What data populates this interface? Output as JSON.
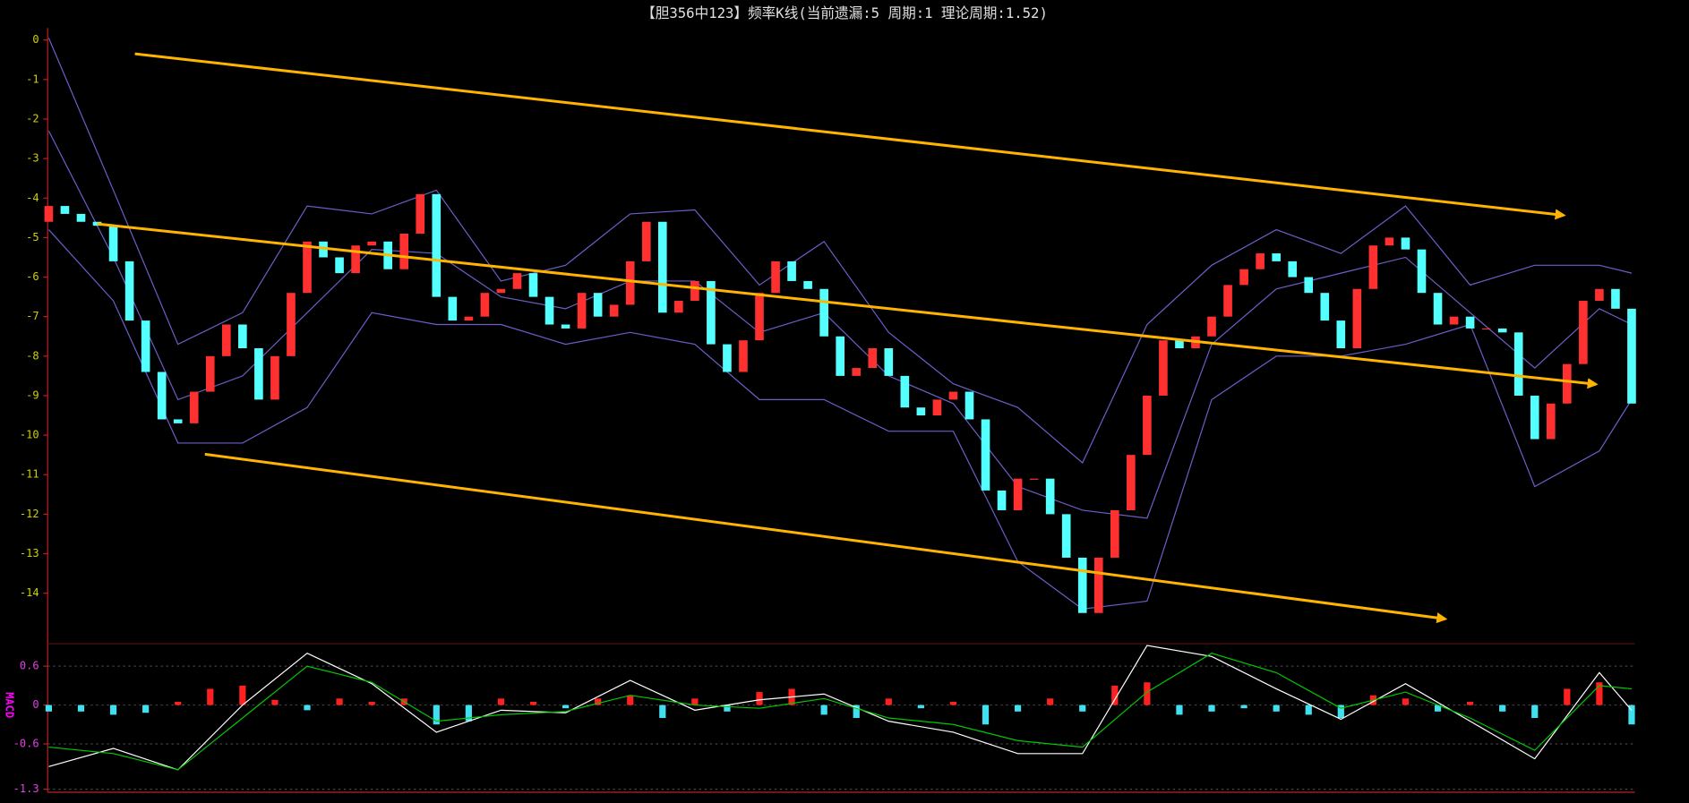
{
  "chart_data": [
    {
      "type": "candlestick",
      "title": "【胆356中123】频率K线(当前遗漏:5 周期:1 理论周期:1.52)",
      "open": [
        -4.6,
        -4.2,
        -4.4,
        -4.6,
        -4.7,
        -5.6,
        -7.1,
        -8.4,
        -9.6,
        -9.7,
        -8.9,
        -8.0,
        -7.2,
        -7.8,
        -9.1,
        -8.0,
        -6.4,
        -5.1,
        -5.5,
        -5.9,
        -5.2,
        -5.1,
        -5.8,
        -4.9,
        -3.9,
        -6.5,
        -7.1,
        -7.0,
        -6.4,
        -6.3,
        -5.9,
        -6.5,
        -7.2,
        -7.3,
        -6.4,
        -7.0,
        -6.7,
        -5.6,
        -4.6,
        -6.9,
        -6.6,
        -6.1,
        -7.7,
        -8.4,
        -7.6,
        -6.4,
        -5.6,
        -6.1,
        -6.3,
        -7.5,
        -8.5,
        -8.3,
        -7.8,
        -8.5,
        -9.3,
        -9.5,
        -9.1,
        -8.9,
        -9.6,
        -11.4,
        -11.9,
        -11.1,
        -11.1,
        -12.0,
        -13.1,
        -14.5,
        -13.1,
        -11.9,
        -10.5,
        -9.0,
        -7.6,
        -7.8,
        -7.5,
        -7.0,
        -6.2,
        -5.8,
        -5.4,
        -5.6,
        -6.0,
        -6.4,
        -7.1,
        -7.8,
        -6.3,
        -5.2,
        -5.0,
        -5.3,
        -6.4,
        -7.2,
        -7.0,
        -7.3,
        -7.3,
        -7.4,
        -9.0,
        -10.1,
        -9.2,
        -8.2,
        -6.6,
        -6.3,
        -6.8
      ],
      "close": [
        -4.2,
        -4.4,
        -4.6,
        -4.7,
        -5.6,
        -7.1,
        -8.4,
        -9.6,
        -9.7,
        -8.9,
        -8.0,
        -7.2,
        -7.8,
        -9.1,
        -8.0,
        -6.4,
        -5.1,
        -5.5,
        -5.9,
        -5.2,
        -5.1,
        -5.8,
        -4.9,
        -3.9,
        -6.5,
        -7.1,
        -7.0,
        -6.4,
        -6.3,
        -5.9,
        -6.5,
        -7.2,
        -7.3,
        -6.4,
        -7.0,
        -6.7,
        -5.6,
        -4.6,
        -6.9,
        -6.6,
        -6.1,
        -7.7,
        -8.4,
        -7.6,
        -6.4,
        -5.6,
        -6.1,
        -6.3,
        -7.5,
        -8.5,
        -8.3,
        -7.8,
        -8.5,
        -9.3,
        -9.5,
        -9.1,
        -8.9,
        -9.6,
        -11.4,
        -11.9,
        -11.1,
        -11.1,
        -12.0,
        -13.1,
        -14.5,
        -13.1,
        -11.9,
        -10.5,
        -9.0,
        -7.6,
        -7.8,
        -7.5,
        -7.0,
        -6.2,
        -5.8,
        -5.4,
        -5.6,
        -6.0,
        -6.4,
        -7.1,
        -7.8,
        -6.3,
        -5.2,
        -5.0,
        -5.3,
        -6.4,
        -7.2,
        -7.0,
        -7.3,
        -7.3,
        -7.4,
        -9.0,
        -10.1,
        -9.2,
        -8.2,
        -6.6,
        -6.3,
        -6.8,
        -9.2
      ],
      "up_color": "#ff3030",
      "down_color": "#54ffff",
      "ylim": [
        -15.25,
        0.25
      ],
      "yticks": [
        0,
        -1,
        -2,
        -3,
        -4,
        -5,
        -6,
        -7,
        -8,
        -9,
        -10,
        -11,
        -12,
        -13,
        -14
      ],
      "series": [
        {
          "color": "#6a5fc8",
          "x": [
            0,
            4,
            8,
            12,
            16,
            20,
            24,
            28,
            32,
            36,
            40,
            44,
            48,
            52,
            56,
            60,
            64,
            68,
            72,
            76,
            80,
            84,
            88,
            92,
            96,
            98
          ],
          "values": [
            0.05,
            -3.8,
            -7.7,
            -6.9,
            -4.2,
            -4.4,
            -3.8,
            -6.1,
            -5.7,
            -4.4,
            -4.3,
            -6.2,
            -5.1,
            -7.4,
            -8.7,
            -9.3,
            -10.7,
            -7.2,
            -5.7,
            -4.8,
            -5.4,
            -4.2,
            -6.2,
            -5.7,
            -5.7,
            -5.9
          ]
        },
        {
          "color": "#6a5fc8",
          "x": [
            0,
            4,
            8,
            12,
            16,
            20,
            24,
            28,
            32,
            36,
            40,
            44,
            48,
            52,
            56,
            60,
            64,
            68,
            72,
            76,
            80,
            84,
            88,
            92,
            96,
            98
          ],
          "values": [
            -2.3,
            -5.5,
            -9.1,
            -8.5,
            -6.9,
            -5.3,
            -5.4,
            -6.5,
            -6.8,
            -6.1,
            -6.1,
            -7.4,
            -6.9,
            -8.5,
            -9.2,
            -11.3,
            -11.9,
            -12.1,
            -7.7,
            -6.3,
            -5.9,
            -5.5,
            -6.9,
            -8.3,
            -6.8,
            -7.2
          ]
        },
        {
          "color": "#6a5fc8",
          "x": [
            0,
            4,
            8,
            12,
            16,
            20,
            24,
            28,
            32,
            36,
            40,
            44,
            48,
            52,
            56,
            60,
            64,
            68,
            72,
            76,
            80,
            84,
            88,
            92,
            96,
            98
          ],
          "values": [
            -4.8,
            -6.6,
            -10.2,
            -10.2,
            -9.3,
            -6.9,
            -7.2,
            -7.2,
            -7.7,
            -7.4,
            -7.7,
            -9.1,
            -9.1,
            -9.9,
            -9.9,
            -13.2,
            -14.4,
            -14.2,
            -9.1,
            -8.0,
            -8.0,
            -7.7,
            -7.2,
            -11.3,
            -10.4,
            -9.1
          ]
        }
      ]
    },
    {
      "type": "macd",
      "label": "MACD",
      "ylim": [
        -1.33,
        1.08
      ],
      "yticks": [
        0.6,
        0,
        -0.6,
        -1.3
      ],
      "grid": true,
      "histogram": {
        "up_color": "#ff2020",
        "down_color": "#40e0f0",
        "x": [
          0,
          2,
          4,
          6,
          8,
          10,
          12,
          14,
          16,
          18,
          20,
          22,
          24,
          26,
          28,
          30,
          32,
          34,
          36,
          38,
          40,
          42,
          44,
          46,
          48,
          50,
          52,
          54,
          56,
          58,
          60,
          62,
          64,
          66,
          68,
          70,
          72,
          74,
          76,
          78,
          80,
          82,
          84,
          86,
          88,
          90,
          92,
          94,
          96,
          98
        ],
        "values": [
          -0.1,
          -0.1,
          -0.15,
          -0.12,
          0.05,
          0.25,
          0.3,
          0.08,
          -0.08,
          0.1,
          0.05,
          0.1,
          -0.3,
          -0.25,
          0.1,
          0.05,
          -0.05,
          0.1,
          0.15,
          -0.2,
          0.1,
          -0.1,
          0.2,
          0.25,
          -0.15,
          -0.2,
          0.1,
          -0.05,
          0.05,
          -0.3,
          -0.1,
          0.1,
          -0.1,
          0.3,
          0.35,
          -0.15,
          -0.1,
          -0.05,
          -0.1,
          -0.15,
          -0.2,
          0.15,
          0.1,
          -0.1,
          0.05,
          -0.1,
          -0.2,
          0.25,
          0.35,
          -0.3
        ]
      },
      "series": [
        {
          "color": "#ffffff",
          "x": [
            0,
            4,
            8,
            12,
            16,
            20,
            24,
            28,
            32,
            36,
            40,
            44,
            48,
            52,
            56,
            60,
            64,
            68,
            72,
            76,
            80,
            84,
            88,
            92,
            96,
            98
          ],
          "values": [
            -0.95,
            -0.67,
            -1.0,
            0,
            0.8,
            0.33,
            -0.42,
            -0.08,
            -0.12,
            0.38,
            -0.08,
            0.08,
            0.17,
            -0.25,
            -0.42,
            -0.75,
            -0.75,
            0.92,
            0.75,
            0.25,
            -0.22,
            0.33,
            -0.25,
            -0.83,
            0.5,
            -0.08
          ]
        },
        {
          "color": "#00c800",
          "x": [
            0,
            4,
            8,
            12,
            16,
            20,
            24,
            28,
            32,
            36,
            40,
            44,
            48,
            52,
            56,
            60,
            64,
            68,
            72,
            76,
            80,
            84,
            88,
            92,
            96,
            98
          ],
          "values": [
            -0.65,
            -0.75,
            -1.0,
            -0.2,
            0.6,
            0.35,
            -0.25,
            -0.15,
            -0.1,
            0.15,
            0,
            -0.05,
            0.1,
            -0.2,
            -0.3,
            -0.55,
            -0.65,
            0.2,
            0.8,
            0.5,
            -0.05,
            0.2,
            -0.2,
            -0.7,
            0.3,
            0.25
          ]
        }
      ]
    }
  ]
}
